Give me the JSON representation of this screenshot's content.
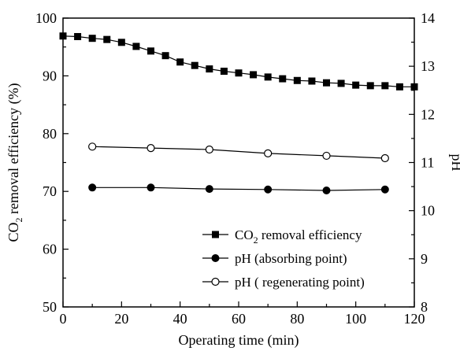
{
  "chart_data": {
    "type": "line",
    "title": "",
    "xlabel": "Operating time (min)",
    "ylabel": "CO2 removal efficiency (%)",
    "ylabel_parts": {
      "pre": "CO",
      "sub": "2",
      "post": " removal efficiency (%)"
    },
    "y2label": "pH",
    "xlim": [
      0,
      120
    ],
    "ylim": [
      50,
      100
    ],
    "y2lim": [
      8,
      14
    ],
    "xticks": [
      0,
      20,
      40,
      60,
      80,
      100,
      120
    ],
    "yticks": [
      50,
      60,
      70,
      80,
      90,
      100
    ],
    "y2ticks": [
      8,
      9,
      10,
      11,
      12,
      13,
      14
    ],
    "grid": false,
    "legend_position": "bottom-right",
    "series": [
      {
        "name": "CO2 removal efficiency",
        "legend_parts": {
          "pre": "CO",
          "sub": "2",
          "post": " removal efficiency"
        },
        "axis": "left",
        "marker": "filled-square",
        "x": [
          0,
          5,
          10,
          15,
          20,
          25,
          30,
          35,
          40,
          45,
          50,
          55,
          60,
          65,
          70,
          75,
          80,
          85,
          90,
          95,
          100,
          105,
          110,
          115,
          120
        ],
        "y": [
          96.9,
          96.8,
          96.5,
          96.3,
          95.8,
          95.1,
          94.3,
          93.5,
          92.4,
          91.8,
          91.2,
          90.8,
          90.5,
          90.2,
          89.8,
          89.5,
          89.2,
          89.1,
          88.8,
          88.7,
          88.4,
          88.3,
          88.3,
          88.1,
          88.1
        ]
      },
      {
        "name": "pH (absorbing point)",
        "axis": "right",
        "marker": "filled-circle",
        "x": [
          10,
          30,
          50,
          70,
          90,
          110
        ],
        "y": [
          10.48,
          10.48,
          10.45,
          10.44,
          10.42,
          10.44
        ]
      },
      {
        "name": "pH ( regenerating point)",
        "axis": "right",
        "marker": "open-circle",
        "x": [
          10,
          30,
          50,
          70,
          90,
          110
        ],
        "y": [
          11.33,
          11.3,
          11.27,
          11.19,
          11.14,
          11.09
        ]
      }
    ]
  }
}
